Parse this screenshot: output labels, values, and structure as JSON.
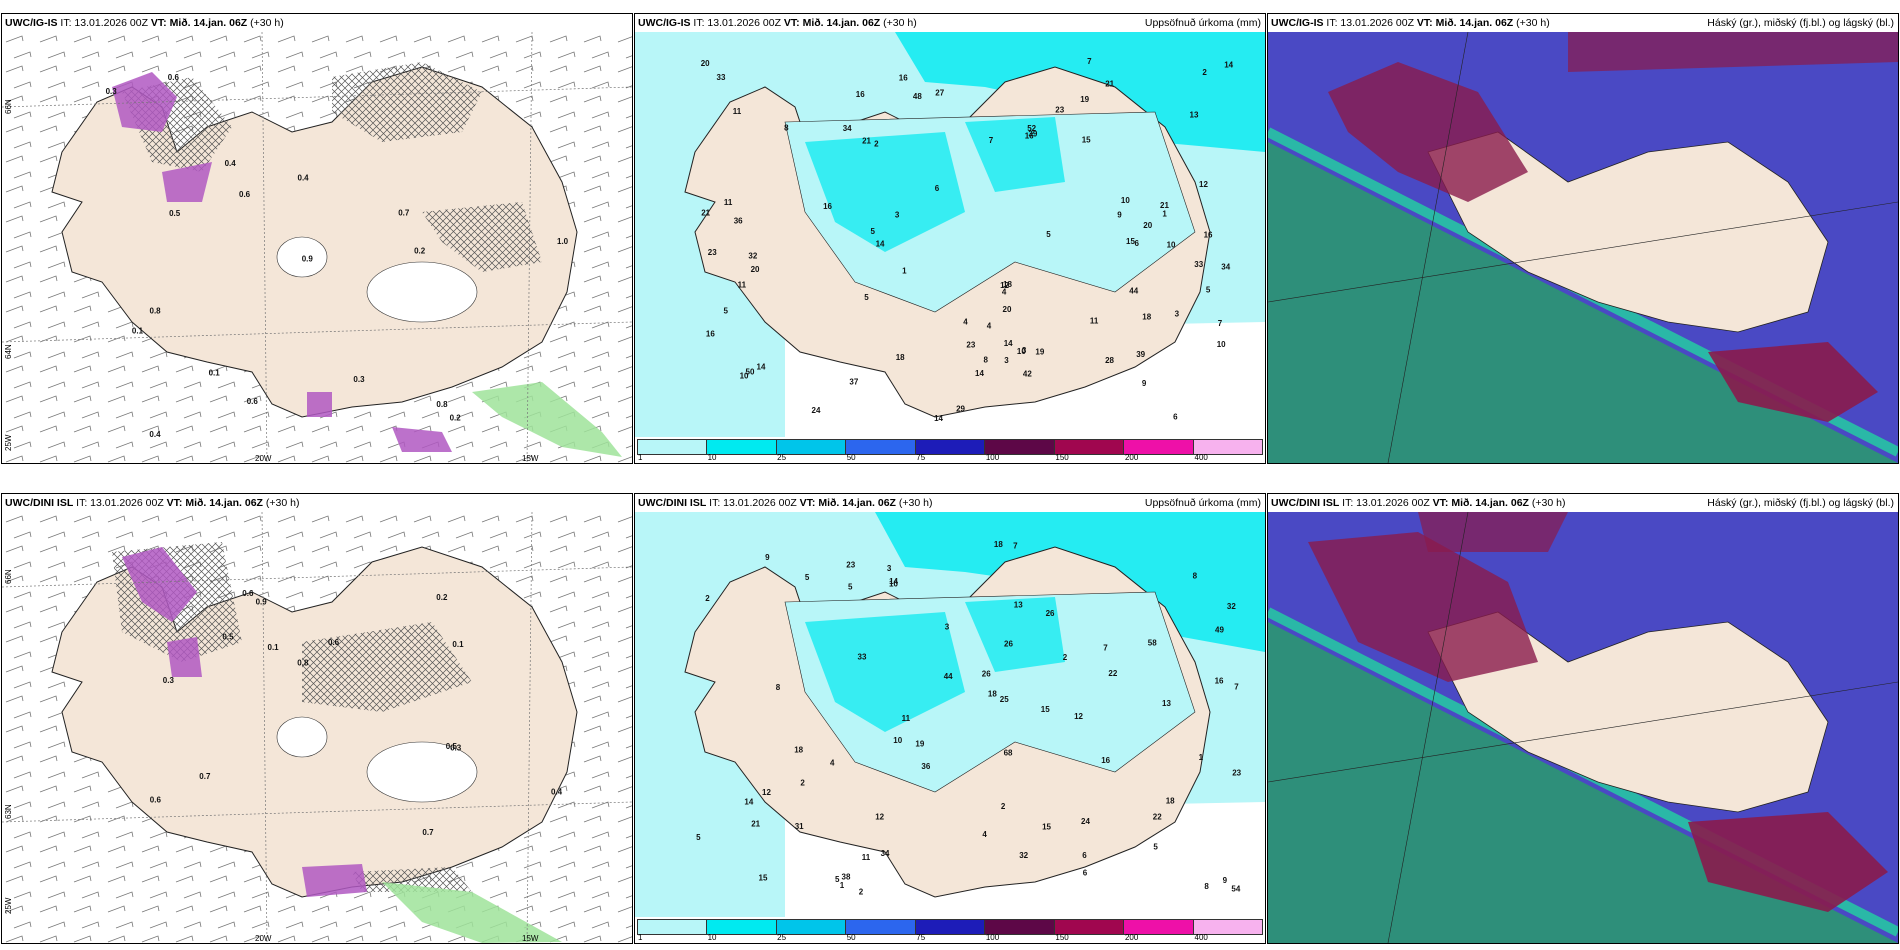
{
  "rows": [
    {
      "model": "UWC/IG-IS",
      "it": "IT: 13.01.2026 00Z",
      "vt": "VT: Mið. 14.jan. 06Z",
      "lead": "(+30 h)",
      "precip_title": "Uppsöfnuð úrkoma (mm)",
      "cloud_title": "Háský (gr.), miðský (fj.bl.) og lágský (bl.)",
      "precip_values": [
        "15",
        "14",
        "14",
        "23",
        "15",
        "10",
        "10",
        "5",
        "9",
        "16",
        "4",
        "7",
        "6",
        "6",
        "7",
        "2",
        "1",
        "3",
        "10",
        "16",
        "14",
        "16",
        "18",
        "24",
        "19",
        "3",
        "1",
        "37",
        "20",
        "39",
        "36",
        "28",
        "44",
        "48",
        "34",
        "21",
        "52",
        "27",
        "39",
        "33",
        "42",
        "21",
        "20",
        "50",
        "18",
        "21",
        "16",
        "12",
        "33",
        "18",
        "11",
        "8",
        "20",
        "16",
        "23",
        "5",
        "10",
        "7",
        "5",
        "11",
        "34",
        "29",
        "16",
        "20",
        "14",
        "13",
        "6",
        "5",
        "5",
        "2",
        "11",
        "23",
        "32",
        "14",
        "9",
        "11",
        "8",
        "4",
        "3",
        "4",
        "14",
        "21",
        "3",
        "12",
        "19",
        "10"
      ],
      "hatch_values": [
        "0.2",
        "0.3",
        "0.1",
        "0.7",
        "0.8",
        "0.4",
        "0.5",
        "0.2",
        "0.1",
        "0.3",
        "0.9",
        "1.0",
        "0.6",
        "0.4",
        "0.6",
        "0.6",
        "0.8",
        "0.4"
      ]
    },
    {
      "model": "UWC/DINI ISL",
      "it": "IT: 13.01.2026 00Z",
      "vt": "VT: Mið. 14.jan. 06Z",
      "lead": "(+30 h)",
      "precip_title": "Uppsöfnuð úrkoma (mm)",
      "cloud_title": "Háský (gr.), miðský (fj.bl.) og lágský (bl.)",
      "precip_values": [
        "7",
        "9",
        "7",
        "12",
        "8",
        "15",
        "4",
        "2",
        "5",
        "2",
        "18",
        "24",
        "32",
        "23",
        "68",
        "58",
        "54",
        "16",
        "44",
        "18",
        "13",
        "31",
        "49",
        "36",
        "34",
        "32",
        "26",
        "38",
        "15",
        "11",
        "33",
        "22",
        "18",
        "22",
        "12",
        "11",
        "7",
        "23",
        "14",
        "12",
        "26",
        "13",
        "21",
        "25",
        "16",
        "15",
        "14",
        "6",
        "5",
        "10",
        "3",
        "10",
        "8",
        "4",
        "5",
        "3",
        "5",
        "8",
        "5",
        "9",
        "26",
        "2",
        "2",
        "2",
        "1",
        "6",
        "1",
        "18",
        "19"
      ],
      "hatch_values": [
        "0.2",
        "0.6",
        "0.7",
        "0.4",
        "0.3",
        "0.9",
        "0.1",
        "0.6",
        "0.3",
        "0.8",
        "0.5",
        "0.5",
        "0.6",
        "0.1",
        "0.7"
      ]
    }
  ],
  "axis_labels": {
    "lat66": "66N",
    "lat64": "64N",
    "lat63": "63N",
    "lon20": "20W",
    "lon15": "15W",
    "lon25": "25W"
  },
  "legend": {
    "ticks": [
      "1",
      "10",
      "25",
      "50",
      "75",
      "100",
      "150",
      "200",
      "400"
    ],
    "colors": [
      "#b8f6f8",
      "#00eaf0",
      "#00c5ea",
      "#2c66ee",
      "#1d1cb8",
      "#5d0747",
      "#a0064f",
      "#ee10a8",
      "#f7b2ee"
    ]
  },
  "colors": {
    "land": "#f4e6d8",
    "sea_green": "#2e8f7a",
    "cloud_blue": "#4a49c4",
    "cloud_red": "#8a1b4c",
    "precip": "#b8f6f8"
  }
}
